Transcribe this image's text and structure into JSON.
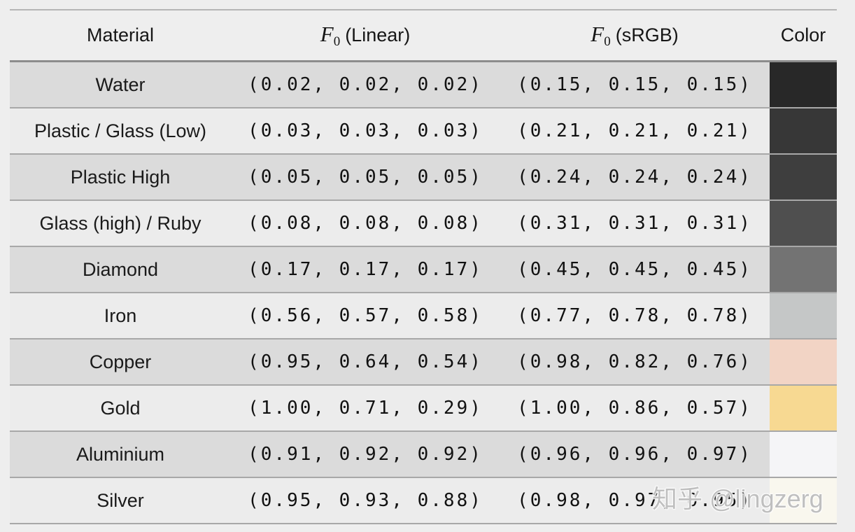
{
  "page": {
    "background": "#eeeeee",
    "row_dark": "#dbdbdb",
    "row_light": "#ececec",
    "separator_color": "#a8a8a8",
    "header_rule_top": "#b5b5b5",
    "header_rule_bottom": "#8c8c8c"
  },
  "table": {
    "headers": {
      "material": "Material",
      "f_symbol": "F",
      "f_subscript": "0",
      "linear_label": "(Linear)",
      "srgb_label": "(sRGB)",
      "color": "Color"
    },
    "rows": [
      {
        "material": "Water",
        "linear": "(0.02, 0.02, 0.02)",
        "srgb": "(0.15, 0.15, 0.15)",
        "swatch": "#282828"
      },
      {
        "material": "Plastic / Glass (Low)",
        "linear": "(0.03, 0.03, 0.03)",
        "srgb": "(0.21, 0.21, 0.21)",
        "swatch": "#373737"
      },
      {
        "material": "Plastic High",
        "linear": "(0.05, 0.05, 0.05)",
        "srgb": "(0.24, 0.24, 0.24)",
        "swatch": "#3e3e3e"
      },
      {
        "material": "Glass (high) / Ruby",
        "linear": "(0.08, 0.08, 0.08)",
        "srgb": "(0.31, 0.31, 0.31)",
        "swatch": "#4f4f4f"
      },
      {
        "material": "Diamond",
        "linear": "(0.17, 0.17, 0.17)",
        "srgb": "(0.45, 0.45, 0.45)",
        "swatch": "#737373"
      },
      {
        "material": "Iron",
        "linear": "(0.56, 0.57, 0.58)",
        "srgb": "(0.77, 0.78, 0.78)",
        "swatch": "#c5c7c7"
      },
      {
        "material": "Copper",
        "linear": "(0.95, 0.64, 0.54)",
        "srgb": "(0.98, 0.82, 0.76)",
        "swatch": "#f2d4c5"
      },
      {
        "material": "Gold",
        "linear": "(1.00, 0.71, 0.29)",
        "srgb": "(1.00, 0.86, 0.57)",
        "swatch": "#f7d992"
      },
      {
        "material": "Aluminium",
        "linear": "(0.91, 0.92, 0.92)",
        "srgb": "(0.96, 0.96, 0.97)",
        "swatch": "#f5f5f7"
      },
      {
        "material": "Silver",
        "linear": "(0.95, 0.93, 0.88)",
        "srgb": "(0.98, 0.97, 0.95)",
        "swatch": "#f9f7ee"
      }
    ]
  },
  "watermark": {
    "text": "知乎 @lingzerg"
  }
}
